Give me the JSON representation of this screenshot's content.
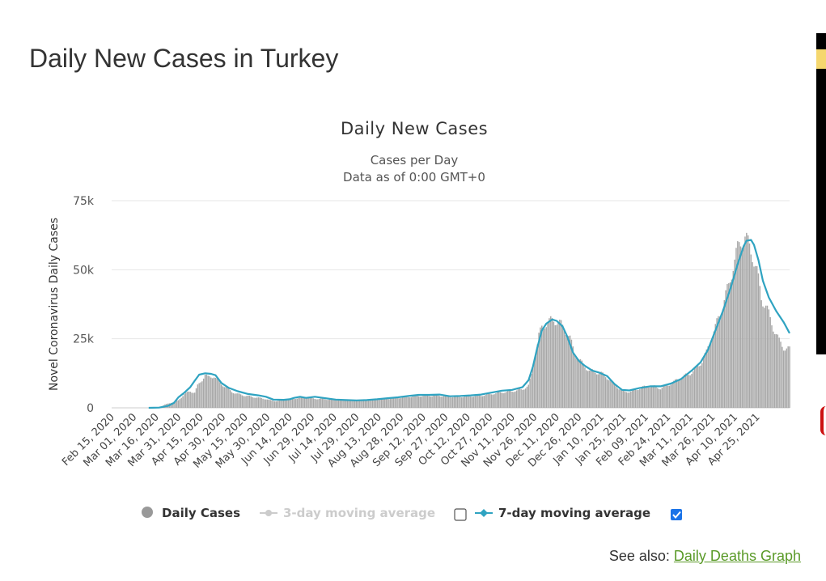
{
  "page": {
    "title": "Daily New Cases in Turkey",
    "see_also_label": "See also:",
    "see_also_link": "Daily Deaths Graph"
  },
  "colors": {
    "bar": "#a8a8a8",
    "line": "#2fa3c1",
    "grid": "#e6e6e6",
    "link": "#5a9a28",
    "checkbox_checked": "#1a73e8"
  },
  "chart_data": {
    "type": "bar",
    "title": "Daily New Cases",
    "subtitle": [
      "Cases per Day",
      "Data as of 0:00 GMT+0"
    ],
    "xlabel": "",
    "ylabel": "Novel Coronavirus Daily Cases",
    "ylim": [
      0,
      75000
    ],
    "yticks": [
      0,
      25000,
      50000,
      75000
    ],
    "ytick_labels": [
      "0",
      "25k",
      "50k",
      "75k"
    ],
    "xlim": [
      "2020-02-15",
      "2021-05-17"
    ],
    "xtick_labels": [
      "Feb 15, 2020",
      "Mar 01, 2020",
      "Mar 16, 2020",
      "Mar 31, 2020",
      "Apr 15, 2020",
      "Apr 30, 2020",
      "May 15, 2020",
      "May 30, 2020",
      "Jun 14, 2020",
      "Jun 29, 2020",
      "Jul 14, 2020",
      "Jul 29, 2020",
      "Aug 13, 2020",
      "Aug 28, 2020",
      "Sep 12, 2020",
      "Sep 27, 2020",
      "Oct 12, 2020",
      "Oct 27, 2020",
      "Nov 11, 2020",
      "Nov 26, 2020",
      "Dec 11, 2020",
      "Dec 26, 2020",
      "Jan 10, 2021",
      "Jan 25, 2021",
      "Feb 09, 2021",
      "Feb 24, 2021",
      "Mar 11, 2021",
      "Mar 26, 2021",
      "Apr 10, 2021",
      "Apr 25, 2021"
    ],
    "grid": true,
    "legend_position": "bottom",
    "legend": [
      {
        "name": "Daily Cases",
        "marker": "circle",
        "active": true
      },
      {
        "name": "3-day moving average",
        "marker": "line-circle",
        "active": false,
        "checkbox": false
      },
      {
        "name": "7-day moving average",
        "marker": "line-diamond",
        "active": true,
        "checkbox": true
      }
    ],
    "series": [
      {
        "name": "Daily Cases",
        "type": "bar",
        "points": [
          [
            "2020-02-15",
            0
          ],
          [
            "2020-03-10",
            0
          ],
          [
            "2020-03-11",
            1
          ],
          [
            "2020-03-18",
            100
          ],
          [
            "2020-03-22",
            1200
          ],
          [
            "2020-03-27",
            2000
          ],
          [
            "2020-03-31",
            2700
          ],
          [
            "2020-04-04",
            5000
          ],
          [
            "2020-04-08",
            6000
          ],
          [
            "2020-04-11",
            5500
          ],
          [
            "2020-04-13",
            8000
          ],
          [
            "2020-04-16",
            10200
          ],
          [
            "2020-04-18",
            12000
          ],
          [
            "2020-04-20",
            11000
          ],
          [
            "2020-04-24",
            11500
          ],
          [
            "2020-04-28",
            9000
          ],
          [
            "2020-05-02",
            7500
          ],
          [
            "2020-05-06",
            5800
          ],
          [
            "2020-05-10",
            5000
          ],
          [
            "2020-05-15",
            4400
          ],
          [
            "2020-05-22",
            3800
          ],
          [
            "2020-05-29",
            3200
          ],
          [
            "2020-06-01",
            2700
          ],
          [
            "2020-06-05",
            2500
          ],
          [
            "2020-06-08",
            2600
          ],
          [
            "2020-06-12",
            3200
          ],
          [
            "2020-06-16",
            3200
          ],
          [
            "2020-06-20",
            3600
          ],
          [
            "2020-06-24",
            3700
          ],
          [
            "2020-06-27",
            3500
          ],
          [
            "2020-07-01",
            3300
          ],
          [
            "2020-07-08",
            3100
          ],
          [
            "2020-07-15",
            2900
          ],
          [
            "2020-07-22",
            2700
          ],
          [
            "2020-07-29",
            2700
          ],
          [
            "2020-08-05",
            2800
          ],
          [
            "2020-08-12",
            3000
          ],
          [
            "2020-08-19",
            3300
          ],
          [
            "2020-08-26",
            3600
          ],
          [
            "2020-09-02",
            4000
          ],
          [
            "2020-09-09",
            4300
          ],
          [
            "2020-09-16",
            4400
          ],
          [
            "2020-09-23",
            4400
          ],
          [
            "2020-09-30",
            4000
          ],
          [
            "2020-10-07",
            4000
          ],
          [
            "2020-10-14",
            4200
          ],
          [
            "2020-10-21",
            4400
          ],
          [
            "2020-10-28",
            5000
          ],
          [
            "2020-11-04",
            5600
          ],
          [
            "2020-11-11",
            6000
          ],
          [
            "2020-11-18",
            6700
          ],
          [
            "2020-11-22",
            8000
          ],
          [
            "2020-11-24",
            12000
          ],
          [
            "2020-11-26",
            18000
          ],
          [
            "2020-11-28",
            23000
          ],
          [
            "2020-11-29",
            26000
          ],
          [
            "2020-12-01",
            29000
          ],
          [
            "2020-12-03",
            30500
          ],
          [
            "2020-12-06",
            31000
          ],
          [
            "2020-12-09",
            32000
          ],
          [
            "2020-12-11",
            31500
          ],
          [
            "2020-12-14",
            30000
          ],
          [
            "2020-12-17",
            28000
          ],
          [
            "2020-12-20",
            25000
          ],
          [
            "2020-12-23",
            20000
          ],
          [
            "2020-12-26",
            17500
          ],
          [
            "2020-12-29",
            15500
          ],
          [
            "2021-01-02",
            13500
          ],
          [
            "2021-01-06",
            13000
          ],
          [
            "2021-01-10",
            12500
          ],
          [
            "2021-01-14",
            11000
          ],
          [
            "2021-01-18",
            9000
          ],
          [
            "2021-01-22",
            7000
          ],
          [
            "2021-01-26",
            5800
          ],
          [
            "2021-01-30",
            5900
          ],
          [
            "2021-02-03",
            6600
          ],
          [
            "2021-02-07",
            7500
          ],
          [
            "2021-02-11",
            7800
          ],
          [
            "2021-02-15",
            7700
          ],
          [
            "2021-02-19",
            7000
          ],
          [
            "2021-02-23",
            8000
          ],
          [
            "2021-02-27",
            9000
          ],
          [
            "2021-03-03",
            10500
          ],
          [
            "2021-03-07",
            11500
          ],
          [
            "2021-03-11",
            12500
          ],
          [
            "2021-03-15",
            14000
          ],
          [
            "2021-03-19",
            17000
          ],
          [
            "2021-03-22",
            20000
          ],
          [
            "2021-03-25",
            25000
          ],
          [
            "2021-03-28",
            29000
          ],
          [
            "2021-03-31",
            34000
          ],
          [
            "2021-04-03",
            39000
          ],
          [
            "2021-04-06",
            44000
          ],
          [
            "2021-04-09",
            52000
          ],
          [
            "2021-04-12",
            57000
          ],
          [
            "2021-04-15",
            61500
          ],
          [
            "2021-04-17",
            62000
          ],
          [
            "2021-04-19",
            59000
          ],
          [
            "2021-04-22",
            56000
          ],
          [
            "2021-04-25",
            49000
          ],
          [
            "2021-04-28",
            40000
          ],
          [
            "2021-05-01",
            37000
          ],
          [
            "2021-05-04",
            32000
          ],
          [
            "2021-05-07",
            28000
          ],
          [
            "2021-05-10",
            24000
          ],
          [
            "2021-05-13",
            22000
          ],
          [
            "2021-05-17",
            21000
          ]
        ]
      },
      {
        "name": "7-day moving average",
        "type": "line",
        "points": [
          [
            "2020-03-11",
            0
          ],
          [
            "2020-03-18",
            100
          ],
          [
            "2020-03-24",
            700
          ],
          [
            "2020-03-28",
            1800
          ],
          [
            "2020-03-31",
            3800
          ],
          [
            "2020-04-04",
            5500
          ],
          [
            "2020-04-08",
            7500
          ],
          [
            "2020-04-11",
            9800
          ],
          [
            "2020-04-14",
            12000
          ],
          [
            "2020-04-18",
            12500
          ],
          [
            "2020-04-22",
            12300
          ],
          [
            "2020-04-25",
            11800
          ],
          [
            "2020-04-29",
            9000
          ],
          [
            "2020-05-04",
            7200
          ],
          [
            "2020-05-10",
            6000
          ],
          [
            "2020-05-17",
            5000
          ],
          [
            "2020-05-24",
            4500
          ],
          [
            "2020-05-29",
            4000
          ],
          [
            "2020-06-03",
            3000
          ],
          [
            "2020-06-10",
            2900
          ],
          [
            "2020-06-14",
            3100
          ],
          [
            "2020-06-17",
            3600
          ],
          [
            "2020-06-21",
            4000
          ],
          [
            "2020-06-25",
            3600
          ],
          [
            "2020-07-01",
            4000
          ],
          [
            "2020-07-08",
            3500
          ],
          [
            "2020-07-15",
            3000
          ],
          [
            "2020-07-22",
            2800
          ],
          [
            "2020-07-29",
            2700
          ],
          [
            "2020-08-05",
            2800
          ],
          [
            "2020-08-12",
            3100
          ],
          [
            "2020-08-19",
            3500
          ],
          [
            "2020-08-26",
            3800
          ],
          [
            "2020-09-02",
            4300
          ],
          [
            "2020-09-09",
            4700
          ],
          [
            "2020-09-16",
            4700
          ],
          [
            "2020-09-23",
            4800
          ],
          [
            "2020-09-30",
            4200
          ],
          [
            "2020-10-07",
            4300
          ],
          [
            "2020-10-14",
            4500
          ],
          [
            "2020-10-21",
            4800
          ],
          [
            "2020-10-28",
            5500
          ],
          [
            "2020-11-04",
            6200
          ],
          [
            "2020-11-11",
            6500
          ],
          [
            "2020-11-18",
            7500
          ],
          [
            "2020-11-22",
            10000
          ],
          [
            "2020-11-25",
            15000
          ],
          [
            "2020-11-28",
            22000
          ],
          [
            "2020-12-01",
            28000
          ],
          [
            "2020-12-04",
            30500
          ],
          [
            "2020-12-08",
            32000
          ],
          [
            "2020-12-11",
            31500
          ],
          [
            "2020-12-15",
            29500
          ],
          [
            "2020-12-18",
            26000
          ],
          [
            "2020-12-22",
            20000
          ],
          [
            "2020-12-26",
            17000
          ],
          [
            "2020-12-30",
            15200
          ],
          [
            "2021-01-04",
            13500
          ],
          [
            "2021-01-09",
            12700
          ],
          [
            "2021-01-14",
            11500
          ],
          [
            "2021-01-19",
            8600
          ],
          [
            "2021-01-24",
            6500
          ],
          [
            "2021-01-29",
            6300
          ],
          [
            "2021-02-05",
            7200
          ],
          [
            "2021-02-12",
            7800
          ],
          [
            "2021-02-19",
            7800
          ],
          [
            "2021-02-26",
            8800
          ],
          [
            "2021-03-05",
            10500
          ],
          [
            "2021-03-12",
            13500
          ],
          [
            "2021-03-18",
            16500
          ],
          [
            "2021-03-23",
            21000
          ],
          [
            "2021-03-28",
            28000
          ],
          [
            "2021-04-02",
            35000
          ],
          [
            "2021-04-07",
            43000
          ],
          [
            "2021-04-12",
            52000
          ],
          [
            "2021-04-16",
            58500
          ],
          [
            "2021-04-18",
            60500
          ],
          [
            "2021-04-21",
            60800
          ],
          [
            "2021-04-23",
            59000
          ],
          [
            "2021-04-26",
            53500
          ],
          [
            "2021-04-29",
            46000
          ],
          [
            "2021-05-03",
            40000
          ],
          [
            "2021-05-08",
            35000
          ],
          [
            "2021-05-13",
            31000
          ],
          [
            "2021-05-17",
            27000
          ]
        ]
      }
    ]
  }
}
